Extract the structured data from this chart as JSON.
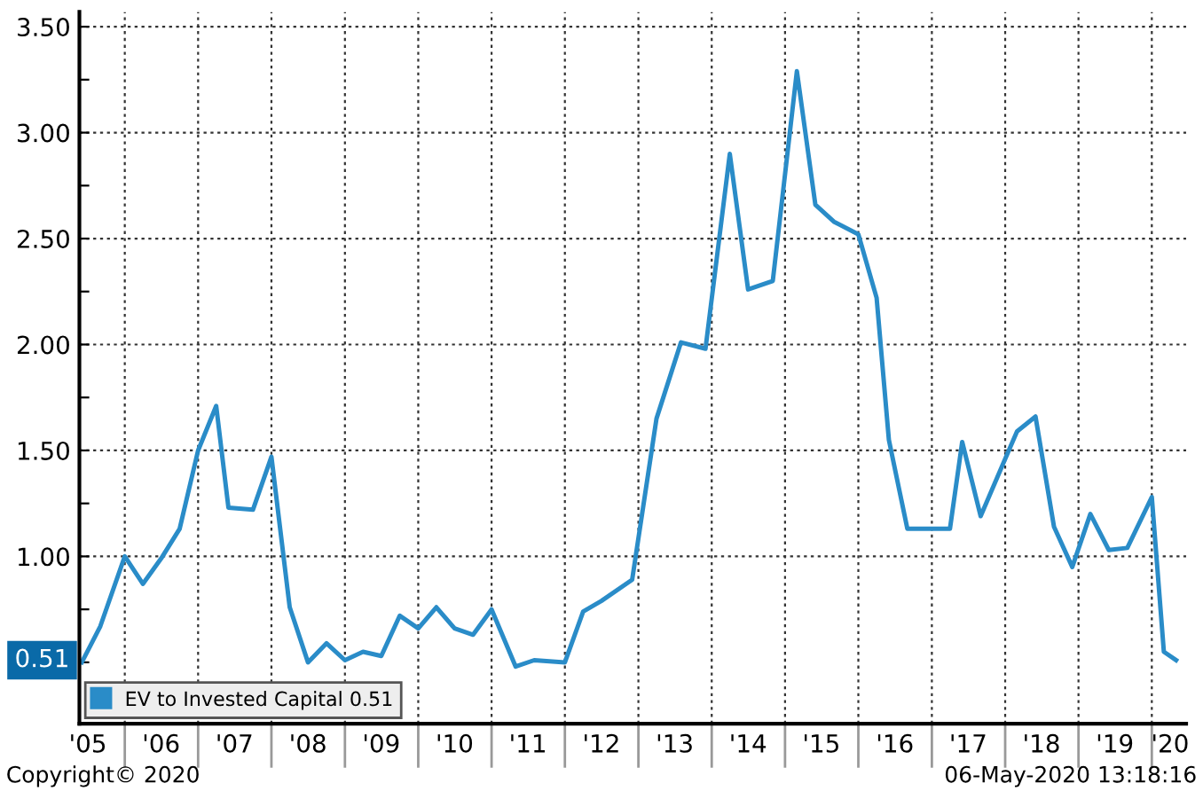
{
  "chart_data": {
    "type": "line",
    "x": [
      "2005-06",
      "2005-09",
      "2006-01",
      "2006-04",
      "2006-07",
      "2006-10",
      "2007-01",
      "2007-04",
      "2007-06",
      "2007-10",
      "2008-01",
      "2008-04",
      "2008-07",
      "2008-10",
      "2009-01",
      "2009-04",
      "2009-07",
      "2009-10",
      "2010-01",
      "2010-04",
      "2010-07",
      "2010-10",
      "2011-01",
      "2011-05",
      "2011-08",
      "2012-01",
      "2012-04",
      "2012-07",
      "2012-12",
      "2013-04",
      "2013-08",
      "2013-12",
      "2014-04",
      "2014-07",
      "2014-11",
      "2015-03",
      "2015-06",
      "2015-09",
      "2016-01",
      "2016-04",
      "2016-06",
      "2016-09",
      "2017-01",
      "2017-04",
      "2017-06",
      "2017-09",
      "2018-01",
      "2018-03",
      "2018-06",
      "2018-09",
      "2018-12",
      "2019-03",
      "2019-06",
      "2019-09",
      "2020-01",
      "2020-03",
      "2020-05"
    ],
    "series": [
      {
        "name": "EV to Invested Capital 0.51",
        "color": "#2a8cc8",
        "values": [
          0.5,
          0.67,
          1.0,
          0.87,
          0.99,
          1.13,
          1.5,
          1.71,
          1.23,
          1.22,
          1.47,
          0.76,
          0.5,
          0.59,
          0.51,
          0.55,
          0.53,
          0.72,
          0.66,
          0.76,
          0.66,
          0.63,
          0.75,
          0.48,
          0.51,
          0.5,
          0.74,
          0.79,
          0.89,
          1.65,
          2.01,
          1.98,
          2.9,
          2.26,
          2.3,
          3.29,
          2.66,
          2.58,
          2.52,
          2.22,
          1.55,
          1.13,
          1.13,
          1.13,
          1.54,
          1.19,
          1.46,
          1.59,
          1.66,
          1.14,
          0.95,
          1.2,
          1.03,
          1.04,
          1.28,
          0.55,
          0.51
        ]
      }
    ],
    "xlim": [
      "2005-05-20",
      "2020-06-20"
    ],
    "xticks": [
      {
        "value": "2005-07-01",
        "label": "'05"
      },
      {
        "value": "2006-01-01",
        "label": null
      },
      {
        "value": "2006-07-01",
        "label": "'06"
      },
      {
        "value": "2007-01-01",
        "label": null
      },
      {
        "value": "2007-07-01",
        "label": "'07"
      },
      {
        "value": "2008-01-01",
        "label": null
      },
      {
        "value": "2008-07-01",
        "label": "'08"
      },
      {
        "value": "2009-01-01",
        "label": null
      },
      {
        "value": "2009-07-01",
        "label": "'09"
      },
      {
        "value": "2010-01-01",
        "label": null
      },
      {
        "value": "2010-07-01",
        "label": "'10"
      },
      {
        "value": "2011-01-01",
        "label": null
      },
      {
        "value": "2011-07-01",
        "label": "'11"
      },
      {
        "value": "2012-01-01",
        "label": null
      },
      {
        "value": "2012-07-01",
        "label": "'12"
      },
      {
        "value": "2013-01-01",
        "label": null
      },
      {
        "value": "2013-07-01",
        "label": "'13"
      },
      {
        "value": "2014-01-01",
        "label": null
      },
      {
        "value": "2014-07-01",
        "label": "'14"
      },
      {
        "value": "2015-01-01",
        "label": null
      },
      {
        "value": "2015-07-01",
        "label": "'15"
      },
      {
        "value": "2016-01-01",
        "label": null
      },
      {
        "value": "2016-07-01",
        "label": "'16"
      },
      {
        "value": "2017-01-01",
        "label": null
      },
      {
        "value": "2017-07-01",
        "label": "'17"
      },
      {
        "value": "2018-01-01",
        "label": null
      },
      {
        "value": "2018-07-01",
        "label": "'18"
      },
      {
        "value": "2019-01-01",
        "label": null
      },
      {
        "value": "2019-07-01",
        "label": "'19"
      },
      {
        "value": "2020-01-01",
        "label": null
      },
      {
        "value": "2020-04-01",
        "label": "'20"
      }
    ],
    "ylim": [
      0.21,
      3.57
    ],
    "yticks": [
      {
        "value": 0.5,
        "label": null
      },
      {
        "value": 0.75,
        "label": null
      },
      {
        "value": 1.0,
        "label": "1.00"
      },
      {
        "value": 1.25,
        "label": null
      },
      {
        "value": 1.5,
        "label": "1.50"
      },
      {
        "value": 1.75,
        "label": null
      },
      {
        "value": 2.0,
        "label": "2.00"
      },
      {
        "value": 2.25,
        "label": null
      },
      {
        "value": 2.5,
        "label": "2.50"
      },
      {
        "value": 2.75,
        "label": null
      },
      {
        "value": 3.0,
        "label": "3.00"
      },
      {
        "value": 3.25,
        "label": null
      },
      {
        "value": 3.5,
        "label": "3.50"
      }
    ],
    "grid": true,
    "legend": "bottom left",
    "annotations": [
      "0.51",
      "Copyright© 2020",
      "06-May-2020 13:18:16"
    ]
  }
}
